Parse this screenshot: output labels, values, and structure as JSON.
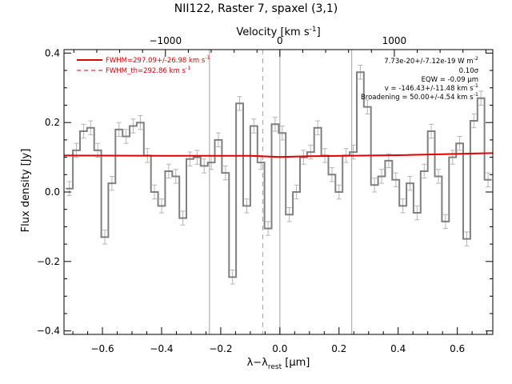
{
  "chart_data": {
    "type": "line",
    "title": "NII122, Raster 7, spaxel (3,1)",
    "xlabel": "λ−λ",
    "xlabel_sub": "rest",
    "xlabel_unit_open": " [",
    "xlabel_unit": "μ",
    "xlabel_unit_close": "m]",
    "ylabel": "Flux density [Jy]",
    "top_axis_label": "Velocity [km s",
    "top_axis_label_exp": "-1",
    "top_axis_label_close": "]",
    "xlim": [
      -0.73,
      0.72
    ],
    "ylim": [
      -0.41,
      0.41
    ],
    "x_ticks": [
      -0.6,
      -0.4,
      -0.2,
      0.0,
      0.2,
      0.4,
      0.6
    ],
    "x_tick_labels": [
      "−0.6",
      "−0.4",
      "−0.2",
      "0.0",
      "0.2",
      "0.4",
      "0.6"
    ],
    "y_ticks": [
      -0.4,
      -0.2,
      0.0,
      0.2,
      0.4
    ],
    "y_tick_labels": [
      "−0.4",
      "−0.2",
      "0.0",
      "0.2",
      "0.4"
    ],
    "top_ticks_x": [
      -0.387,
      0.0,
      0.387
    ],
    "top_tick_labels": [
      "−1000",
      "0",
      "1000"
    ],
    "vertical_lines": [
      -0.238,
      0.0,
      0.243
    ],
    "dashed_line_x": -0.058,
    "bin_width": 0.024,
    "spectrum": {
      "name": "",
      "x": [
        -0.712,
        -0.688,
        -0.664,
        -0.64,
        -0.616,
        -0.592,
        -0.568,
        -0.544,
        -0.52,
        -0.496,
        -0.472,
        -0.448,
        -0.424,
        -0.4,
        -0.376,
        -0.352,
        -0.328,
        -0.304,
        -0.28,
        -0.256,
        -0.232,
        -0.208,
        -0.184,
        -0.16,
        -0.136,
        -0.112,
        -0.088,
        -0.064,
        -0.04,
        -0.016,
        0.008,
        0.032,
        0.056,
        0.08,
        0.104,
        0.128,
        0.152,
        0.176,
        0.2,
        0.224,
        0.248,
        0.272,
        0.296,
        0.32,
        0.344,
        0.368,
        0.392,
        0.416,
        0.44,
        0.464,
        0.488,
        0.512,
        0.536,
        0.56,
        0.584,
        0.608,
        0.632,
        0.656,
        0.68,
        0.704
      ],
      "y": [
        0.01,
        0.12,
        0.175,
        0.185,
        0.12,
        -0.13,
        0.025,
        0.18,
        0.16,
        0.19,
        0.2,
        0.105,
        0.0,
        -0.04,
        0.06,
        0.045,
        -0.075,
        0.095,
        0.1,
        0.075,
        0.085,
        0.15,
        0.055,
        -0.245,
        0.255,
        -0.04,
        0.19,
        0.085,
        -0.105,
        0.195,
        0.17,
        -0.065,
        0.0,
        0.1,
        0.115,
        0.185,
        0.105,
        0.05,
        0.0,
        0.105,
        0.115,
        0.345,
        0.245,
        0.02,
        0.045,
        0.09,
        0.035,
        -0.04,
        0.025,
        -0.06,
        0.06,
        0.175,
        0.045,
        -0.085,
        0.1,
        0.14,
        -0.135,
        0.205,
        0.27,
        0.035
      ],
      "err": [
        0.02,
        0.02,
        0.02,
        0.02,
        0.02,
        0.02,
        0.02,
        0.02,
        0.02,
        0.02,
        0.02,
        0.02,
        0.02,
        0.02,
        0.02,
        0.02,
        0.02,
        0.02,
        0.02,
        0.02,
        0.02,
        0.02,
        0.02,
        0.02,
        0.02,
        0.02,
        0.02,
        0.02,
        0.02,
        0.02,
        0.02,
        0.02,
        0.02,
        0.02,
        0.02,
        0.02,
        0.02,
        0.02,
        0.02,
        0.02,
        0.02,
        0.02,
        0.02,
        0.02,
        0.02,
        0.02,
        0.02,
        0.02,
        0.02,
        0.02,
        0.02,
        0.02,
        0.02,
        0.02,
        0.02,
        0.02,
        0.02,
        0.02,
        0.02,
        0.02
      ]
    },
    "fit": {
      "name": "FWHM=297.09+/-26.98 km s",
      "name_exp": "-1",
      "color": "#e00000",
      "x": [
        -0.73,
        -0.4,
        -0.1,
        0.0,
        0.1,
        0.4,
        0.72
      ],
      "y": [
        0.105,
        0.104,
        0.104,
        0.101,
        0.103,
        0.106,
        0.112
      ]
    },
    "legend_dashed": {
      "name": "FWHM_th=292.86 km s",
      "name_exp": "-1",
      "color": "#e00000"
    },
    "annotations": [
      {
        "text": "7.73e-20+/-7.12e-19 W m",
        "exp": "-2"
      },
      {
        "text": "0.10σ",
        "exp": ""
      },
      {
        "text": "EQW = -0.09 μm",
        "exp": ""
      },
      {
        "text": "v = -146.43+/-11.48 km s",
        "exp": "-1"
      },
      {
        "text": "Broadening = 50.00+/-4.54 km s",
        "exp": "-1"
      }
    ],
    "colors": {
      "spectrum": "#808080",
      "errorbar": "#b4b4b4",
      "fit": "#e00000",
      "vline": "#a0a0a0",
      "dashed": "#a0a0a0",
      "axis": "#000000"
    }
  }
}
